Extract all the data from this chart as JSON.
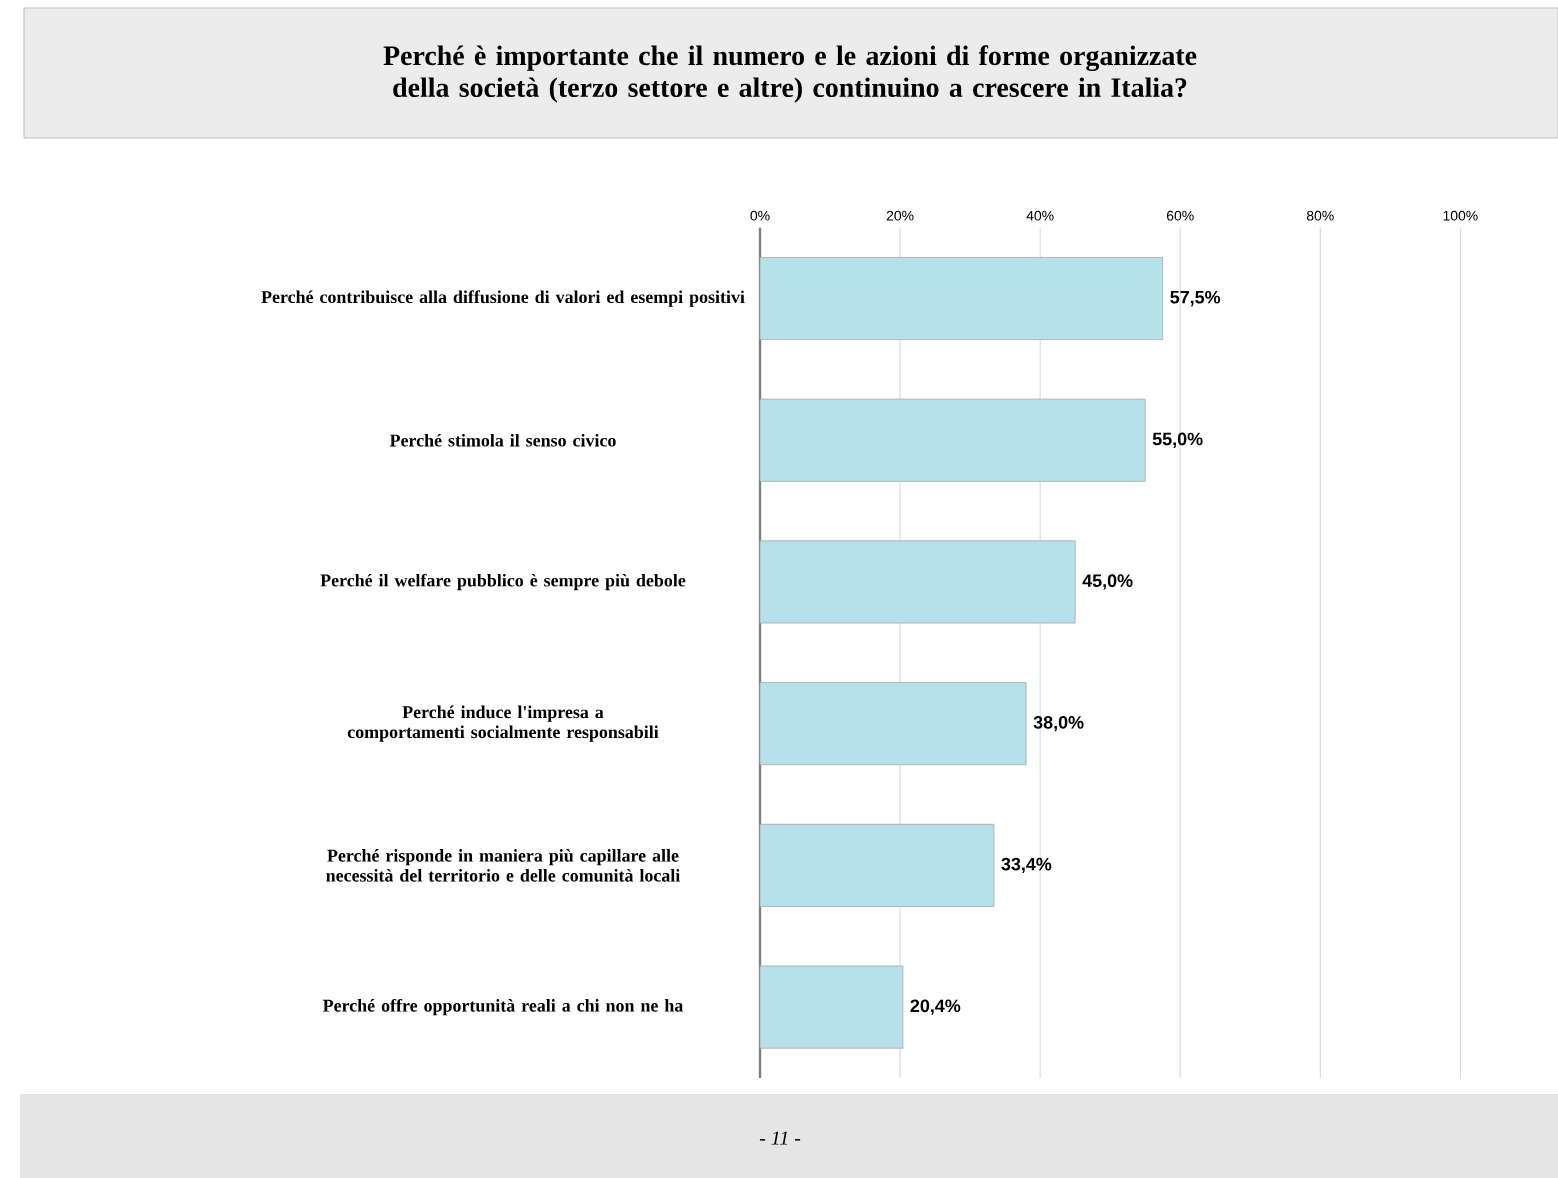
{
  "chart_data": {
    "type": "bar",
    "orientation": "horizontal",
    "title": "Perché è importante che il numero e le azioni di forme organizzate della società (terzo settore e altre) continuino a crescere in Italia?",
    "categories": [
      "Perché contribuisce alla diffusione di valori ed esempi positivi",
      "Perché stimola il senso civico",
      "Perché il welfare pubblico è sempre più debole",
      "Perché induce l'impresa a comportamenti socialmente responsabili",
      "Perché risponde in maniera più capillare alle necessità del territorio e delle comunità locali",
      "Perché offre opportunità reali a chi non ne ha"
    ],
    "values": [
      57.5,
      55.0,
      45.0,
      38.0,
      33.4,
      20.4
    ],
    "value_labels": [
      "57,5%",
      "55,0%",
      "45,0%",
      "38,0%",
      "33,4%",
      "20,4%"
    ],
    "color": "#b7e1ea",
    "xlim": [
      0,
      100
    ],
    "xticks": [
      {
        "value": 0,
        "label": "0%"
      },
      {
        "value": 20,
        "label": "20%"
      },
      {
        "value": 40,
        "label": "40%"
      },
      {
        "value": 60,
        "label": "60%"
      },
      {
        "value": 80,
        "label": "80%"
      },
      {
        "value": 100,
        "label": "100%"
      }
    ],
    "grid": "x",
    "annotations": [
      "- 11 -"
    ]
  }
}
